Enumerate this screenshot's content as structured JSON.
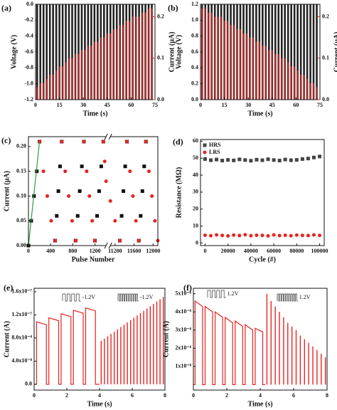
{
  "chart_data": [
    {
      "type": "pulse",
      "label": "(a)",
      "xlabel": "Time (s)",
      "ylabel": "Voltage (V)",
      "y2label": "Current (μA)",
      "xlim": [
        0,
        75
      ],
      "xticks": [
        0,
        15,
        30,
        45,
        60,
        75
      ],
      "ylim": [
        -1.2,
        0
      ],
      "yticks": [
        {
          "value": 0,
          "label": "0.0"
        },
        -0.2,
        -0.4,
        -0.6,
        -0.8,
        {
          "value": -1,
          "label": "-1.0"
        },
        -1.2
      ],
      "y2lim": [
        0,
        0.23
      ],
      "y2ticks": [
        {
          "value": 0,
          "label": "0.0"
        },
        0.1,
        0.2
      ],
      "x": [
        1,
        3,
        5,
        7,
        9,
        11,
        13,
        15,
        17,
        19,
        21,
        23,
        25,
        27,
        29,
        31,
        33,
        35,
        37,
        39,
        41,
        43,
        45,
        47,
        49,
        51,
        53,
        55,
        57,
        59,
        61,
        63,
        65,
        67,
        69,
        71,
        73
      ],
      "series": [
        {
          "color": "#222222",
          "style": "spike",
          "values": [
            -1.2,
            -1.2,
            -1.2,
            -1.2,
            -1.2,
            -1.2,
            -1.2,
            -1.2,
            -1.2,
            -1.2,
            -1.2,
            -1.2,
            -1.2,
            -1.2,
            -1.2,
            -1.2,
            -1.2,
            -1.2,
            -1.2,
            -1.2,
            -1.2,
            -1.2,
            -1.2,
            -1.2,
            -1.2,
            -1.2,
            -1.2,
            -1.2,
            -1.2,
            -1.2,
            -1.2,
            -1.2,
            -1.2,
            -1.2,
            -1.2,
            -1.2,
            -1.2
          ]
        },
        {
          "color": "#e8231f",
          "style": "spike",
          "axis": "y2",
          "values": [
            0.03,
            0.04,
            0.04,
            0.05,
            0.06,
            0.06,
            0.07,
            0.08,
            0.08,
            0.09,
            0.1,
            0.1,
            0.11,
            0.11,
            0.12,
            0.12,
            0.13,
            0.13,
            0.14,
            0.14,
            0.15,
            0.15,
            0.16,
            0.16,
            0.17,
            0.17,
            0.18,
            0.18,
            0.19,
            0.19,
            0.2,
            0.2,
            0.2,
            0.21,
            0.21,
            0.22,
            0.22
          ]
        }
      ]
    },
    {
      "type": "pulse",
      "label": "(b)",
      "xlabel": "Time (s)",
      "ylabel": "Voltage (V)",
      "y2label": "Current (μA)",
      "xlim": [
        0,
        75
      ],
      "xticks": [
        0,
        15,
        30,
        45,
        60,
        75
      ],
      "ylim": [
        0,
        1.2
      ],
      "yticks": [
        {
          "value": 0,
          "label": "0.0"
        },
        0.2,
        0.4,
        0.6,
        0.8,
        {
          "value": 1,
          "label": "1.0"
        },
        1.2
      ],
      "y2lim": [
        0,
        0.23
      ],
      "y2ticks": [
        {
          "value": 0,
          "label": "0.0"
        },
        0.1,
        0.2
      ],
      "x": [
        1,
        3,
        5,
        7,
        9,
        11,
        13,
        15,
        17,
        19,
        21,
        23,
        25,
        27,
        29,
        31,
        33,
        35,
        37,
        39,
        41,
        43,
        45,
        47,
        49,
        51,
        53,
        55,
        57,
        59,
        61,
        63,
        65,
        67,
        69,
        71,
        73
      ],
      "series": [
        {
          "color": "#222222",
          "style": "spike",
          "values": [
            1.2,
            1.2,
            1.2,
            1.2,
            1.2,
            1.2,
            1.2,
            1.2,
            1.2,
            1.2,
            1.2,
            1.2,
            1.2,
            1.2,
            1.2,
            1.2,
            1.2,
            1.2,
            1.2,
            1.2,
            1.2,
            1.2,
            1.2,
            1.2,
            1.2,
            1.2,
            1.2,
            1.2,
            1.2,
            1.2,
            1.2,
            1.2,
            1.2,
            1.2,
            1.2,
            1.2,
            1.2
          ]
        },
        {
          "color": "#e8231f",
          "style": "spike",
          "axis": "y2",
          "values": [
            0.22,
            0.22,
            0.21,
            0.21,
            0.2,
            0.2,
            0.2,
            0.19,
            0.19,
            0.18,
            0.18,
            0.17,
            0.17,
            0.16,
            0.16,
            0.15,
            0.15,
            0.14,
            0.14,
            0.13,
            0.13,
            0.12,
            0.12,
            0.11,
            0.11,
            0.1,
            0.1,
            0.09,
            0.08,
            0.08,
            0.07,
            0.06,
            0.06,
            0.05,
            0.04,
            0.04,
            0.03
          ]
        }
      ]
    },
    {
      "type": "scatter",
      "label": "(c)",
      "xlabel": "Pulse Number",
      "ylabel": "Current (μA)",
      "xlim": [
        0,
        12100
      ],
      "xbreak": [
        1400,
        11100
      ],
      "xticks": [
        0,
        400,
        800,
        1200,
        11200,
        11600,
        12000
      ],
      "ylim": [
        0,
        0.22
      ],
      "yticks": [
        {
          "value": 0,
          "label": "0.00"
        },
        0.05,
        {
          "value": 0.1,
          "label": "0.10"
        },
        0.15,
        {
          "value": 0.2,
          "label": "0.20"
        }
      ],
      "series": [
        {
          "color": "#111111",
          "style": "square",
          "x": [
            0,
            50,
            100,
            150,
            200,
            480,
            510,
            540,
            570,
            600,
            850,
            888,
            925,
            963,
            1000,
            1200,
            1238,
            1275,
            1313,
            1350,
            11300,
            11338,
            11375,
            11413,
            11450,
            11700,
            11738,
            11775,
            11813,
            11850
          ],
          "values": [
            0.0,
            0.05,
            0.1,
            0.15,
            0.21,
            0.01,
            0.06,
            0.11,
            0.16,
            0.21,
            0.01,
            0.06,
            0.11,
            0.16,
            0.21,
            0.01,
            0.06,
            0.11,
            0.16,
            0.21,
            0.01,
            0.06,
            0.11,
            0.16,
            0.21,
            0.01,
            0.06,
            0.11,
            0.16,
            0.21
          ]
        },
        {
          "color": "#e8231f",
          "style": "circle",
          "x": [
            200,
            270,
            340,
            410,
            480,
            600,
            663,
            725,
            788,
            850,
            1000,
            1050,
            1100,
            1150,
            1200,
            1350,
            1375,
            1400,
            11100,
            11200,
            11300,
            11450,
            11513,
            11575,
            11638,
            11700,
            11850,
            11913,
            11975,
            12038,
            12100
          ],
          "values": [
            0.21,
            0.15,
            0.1,
            0.05,
            0.01,
            0.21,
            0.15,
            0.1,
            0.05,
            0.01,
            0.21,
            0.15,
            0.1,
            0.05,
            0.01,
            0.21,
            0.17,
            0.13,
            0.09,
            0.05,
            0.01,
            0.21,
            0.15,
            0.1,
            0.05,
            0.01,
            0.21,
            0.15,
            0.1,
            0.05,
            0.01
          ]
        },
        {
          "color": "#2e9e3a",
          "style": "line",
          "x": [
            0,
            200
          ],
          "values": [
            0.0,
            0.21
          ]
        }
      ]
    },
    {
      "type": "scatter",
      "label": "(d)",
      "xlabel": "Cycle (#)",
      "ylabel": "Resistance (MΩ)",
      "legend": "upper left",
      "xlim": [
        -4000,
        104000
      ],
      "xticks": [
        0,
        20000,
        40000,
        60000,
        80000,
        100000
      ],
      "ylim": [
        -1.5,
        61
      ],
      "yticks": [
        0,
        10,
        20,
        30,
        40,
        50,
        60
      ],
      "x": [
        0,
        5000,
        10000,
        15000,
        20000,
        25000,
        30000,
        35000,
        40000,
        45000,
        50000,
        55000,
        60000,
        65000,
        70000,
        75000,
        80000,
        85000,
        90000,
        95000,
        100000
      ],
      "series": [
        {
          "name": "HRS",
          "color": "#444444",
          "style": "square",
          "values": [
            49.5,
            48.8,
            49.2,
            48.6,
            49.0,
            48.7,
            49.3,
            48.9,
            48.5,
            49.1,
            48.8,
            49.4,
            48.9,
            48.6,
            49.2,
            48.8,
            49.0,
            49.5,
            49.8,
            50.4,
            51.0
          ]
        },
        {
          "name": "LRS",
          "color": "#e8231f",
          "style": "circle",
          "values": [
            4.6,
            4.3,
            4.8,
            4.5,
            4.2,
            4.7,
            4.4,
            4.9,
            4.3,
            4.6,
            4.5,
            4.2,
            4.8,
            4.4,
            4.6,
            4.3,
            4.7,
            4.5,
            4.4,
            4.8,
            4.5
          ]
        }
      ]
    },
    {
      "type": "line",
      "label": "(e)",
      "xlabel": "Time (s)",
      "ylabel": "Current (A)",
      "annotations": [
        "-1.2V",
        "-1.2V"
      ],
      "xlim": [
        0,
        8
      ],
      "xticks": [
        0,
        2,
        4,
        6,
        8
      ],
      "ylim": [
        -1e-08,
        1.66e-07
      ],
      "yticks": [
        {
          "value": 0,
          "label": "0.0"
        },
        {
          "value": 4e-08,
          "label": "4.0x10⁻⁸"
        },
        {
          "value": 8e-08,
          "label": "8.0x10⁻⁸"
        },
        {
          "value": 1.2e-07,
          "label": "1.2x10⁻⁷"
        },
        {
          "value": 1.6e-07,
          "label": "1.6x10⁻⁷"
        }
      ],
      "series": [
        {
          "color": "#e8231f",
          "style": "line",
          "x": [
            0,
            0.15,
            0.15,
            0.75,
            0.75,
            0.9,
            0.9,
            1.5,
            1.5,
            1.65,
            1.65,
            2.25,
            2.25,
            2.4,
            2.4,
            3.0,
            3.0,
            3.15,
            3.15,
            3.75,
            3.75,
            4.0
          ],
          "values": [
            0,
            0,
            1.08e-07,
            1.03e-07,
            0,
            0,
            1.15e-07,
            1.1e-07,
            0,
            0,
            1.22e-07,
            1.17e-07,
            0,
            0,
            1.28e-07,
            1.23e-07,
            0,
            0,
            1.32e-07,
            1.27e-07,
            0,
            0
          ]
        },
        {
          "color": "#e8231f",
          "style": "spike",
          "x": [
            4.1,
            4.3,
            4.5,
            4.7,
            4.9,
            5.1,
            5.3,
            5.5,
            5.7,
            5.9,
            6.1,
            6.3,
            6.5,
            6.7,
            6.9,
            7.1,
            7.3,
            7.5,
            7.7,
            7.9
          ],
          "values": [
            7.5e-08,
            7.9e-08,
            8.3e-08,
            8.7e-08,
            9.1e-08,
            9.5e-08,
            9.9e-08,
            1.03e-07,
            1.07e-07,
            1.11e-07,
            1.15e-07,
            1.19e-07,
            1.23e-07,
            1.27e-07,
            1.31e-07,
            1.35e-07,
            1.39e-07,
            1.43e-07,
            1.47e-07,
            1.51e-07
          ]
        }
      ]
    },
    {
      "type": "line",
      "label": "(f)",
      "xlabel": "Time (s)",
      "ylabel": "Current (A)",
      "annotations": [
        "1.2V",
        "1.2V"
      ],
      "xlim": [
        0,
        8
      ],
      "xticks": [
        0,
        2,
        4,
        6,
        8
      ],
      "ylim": [
        -3e-09,
        5.3e-08
      ],
      "yticks": [
        {
          "value": 1e-08,
          "label": "1x10⁻⁸"
        },
        {
          "value": 2e-08,
          "label": "2x10⁻⁸"
        },
        {
          "value": 3e-08,
          "label": "3x10⁻⁸"
        },
        {
          "value": 4e-08,
          "label": "4x10⁻⁸"
        },
        {
          "value": 5e-08,
          "label": "5x10⁻⁸"
        }
      ],
      "series": [
        {
          "color": "#e8231f",
          "style": "line",
          "x": [
            0,
            0.1,
            0.1,
            0.55,
            0.55,
            0.7,
            0.7,
            1.15,
            1.15,
            1.3,
            1.3,
            1.75,
            1.75,
            1.9,
            1.9,
            2.35,
            2.35,
            2.5,
            2.5,
            2.95,
            2.95,
            3.1,
            3.1,
            3.55,
            3.55,
            3.7,
            3.7,
            4.15,
            4.15,
            4.3
          ],
          "values": [
            0,
            0,
            4.6e-08,
            4.3e-08,
            0,
            0,
            4.3e-08,
            4e-08,
            0,
            0,
            4e-08,
            3.7e-08,
            0,
            0,
            3.7e-08,
            3.4e-08,
            0,
            0,
            3.5e-08,
            3.2e-08,
            0,
            0,
            3.3e-08,
            3e-08,
            0,
            0,
            3.1e-08,
            2.9e-08,
            0,
            0
          ]
        },
        {
          "color": "#e8231f",
          "style": "spike",
          "x": [
            4.4,
            4.65,
            4.9,
            5.15,
            5.4,
            5.65,
            5.9,
            6.15,
            6.4,
            6.65,
            6.9,
            7.15,
            7.4,
            7.65,
            7.9
          ],
          "values": [
            5e-08,
            4.6e-08,
            4.3e-08,
            4e-08,
            3.7e-08,
            3.4e-08,
            3.2e-08,
            3e-08,
            2.7e-08,
            2.5e-08,
            2.3e-08,
            2.1e-08,
            1.9e-08,
            1.7e-08,
            1.5e-08
          ]
        }
      ]
    }
  ]
}
